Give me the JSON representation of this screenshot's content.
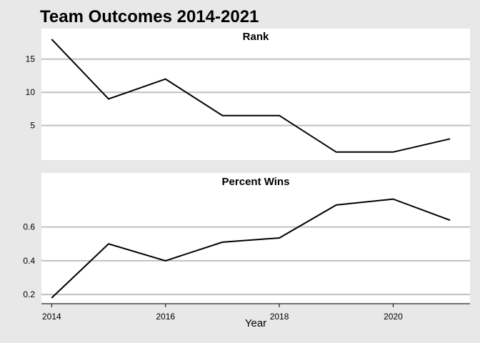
{
  "chart_data": {
    "type": "line",
    "title": "Team Outcomes 2014-2021",
    "xlabel": "Year",
    "x": [
      2014,
      2015,
      2016,
      2017,
      2018,
      2019,
      2020,
      2021
    ],
    "xticks": [
      2014,
      2016,
      2018,
      2020
    ],
    "xtick_labels": [
      "2014",
      "2016",
      "2018",
      "2020"
    ],
    "xlim": [
      2013.82,
      2021.35
    ],
    "grid": true,
    "line_color": "#000000",
    "panel_background": "#ffffff",
    "plot_background": "#e8e8e8",
    "grid_color": "#c0c0c0",
    "panels": [
      {
        "strip_label": "Rank",
        "values": [
          18,
          9,
          12,
          6.5,
          6.5,
          1,
          1,
          3
        ],
        "ylim": [
          -0.2,
          19.6
        ],
        "yticks": [
          5,
          10,
          15
        ],
        "ytick_labels": [
          "5",
          "10",
          "15"
        ]
      },
      {
        "strip_label": "Percent Wins",
        "values": [
          0.18,
          0.5,
          0.4,
          0.51,
          0.535,
          0.73,
          0.765,
          0.64
        ],
        "ylim": [
          0.15,
          0.92
        ],
        "yticks": [
          0.2,
          0.4,
          0.6
        ],
        "ytick_labels": [
          "0.2",
          "0.4",
          "0.6"
        ]
      }
    ]
  }
}
